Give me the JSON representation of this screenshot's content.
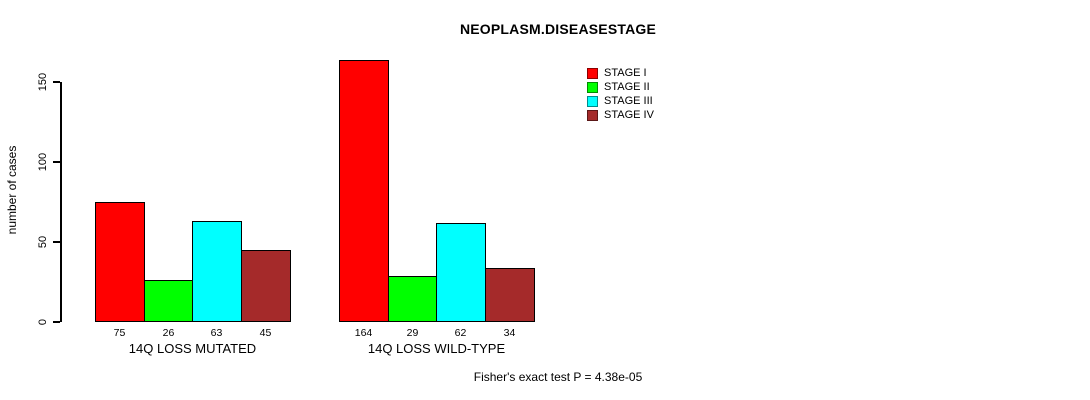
{
  "chart_data": {
    "type": "bar",
    "title": "NEOPLASM.DISEASESTAGE",
    "xlabel": "",
    "ylabel": "number of cases",
    "categories": [
      "14Q LOSS MUTATED",
      "14Q LOSS WILD-TYPE"
    ],
    "series": [
      {
        "name": "STAGE I",
        "color": "#ff0000",
        "values": [
          75,
          164
        ]
      },
      {
        "name": "STAGE II",
        "color": "#00ff00",
        "values": [
          26,
          29
        ]
      },
      {
        "name": "STAGE III",
        "color": "#00ffff",
        "values": [
          63,
          62
        ]
      },
      {
        "name": "STAGE IV",
        "color": "#a52a2a",
        "values": [
          45,
          34
        ]
      }
    ],
    "y_ticks": [
      0,
      50,
      100,
      150
    ],
    "ylim": [
      0,
      170
    ],
    "grid": false,
    "bar_value_labels_shown": true,
    "legend_position": "top-right",
    "legend_entries": [
      "STAGE I",
      "STAGE II",
      "STAGE III",
      "STAGE IV"
    ],
    "annotation": "Fisher's exact test P = 4.38e-05"
  }
}
